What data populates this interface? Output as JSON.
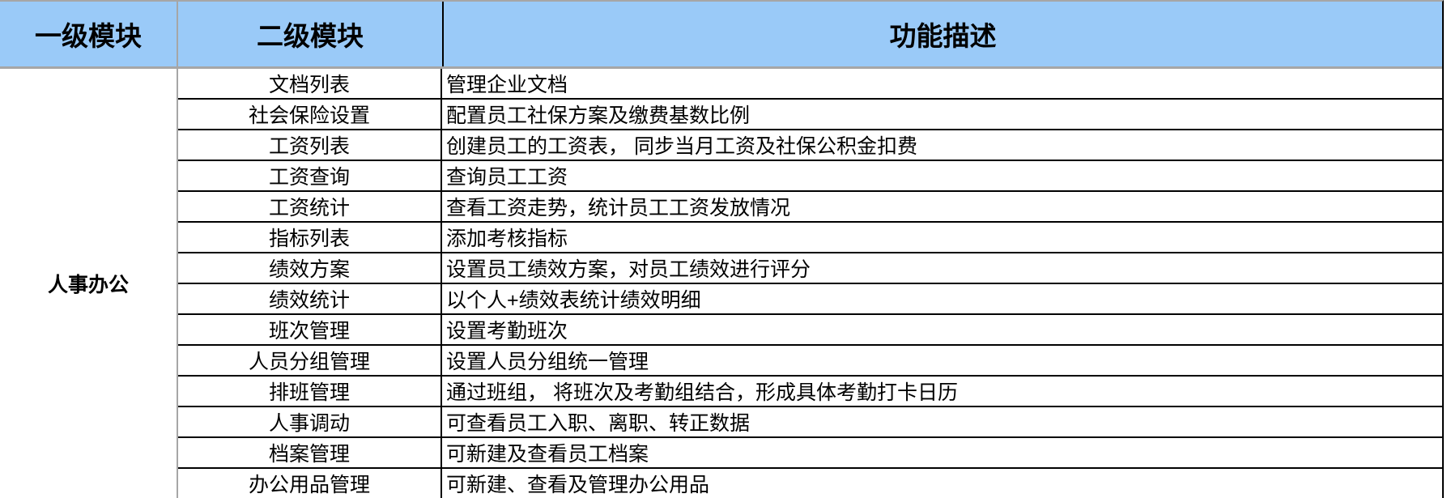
{
  "table": {
    "headers": {
      "level1": "一级模块",
      "level2": "二级模块",
      "description": "功能描述"
    },
    "group_label": "人事办公",
    "rows": [
      {
        "module": "文档列表",
        "description": "管理企业文档"
      },
      {
        "module": "社会保险设置",
        "description": "配置员工社保方案及缴费基数比例"
      },
      {
        "module": "工资列表",
        "description": "创建员工的工资表， 同步当月工资及社保公积金扣费"
      },
      {
        "module": "工资查询",
        "description": "查询员工工资"
      },
      {
        "module": "工资统计",
        "description": "查看工资走势，统计员工工资发放情况"
      },
      {
        "module": "指标列表",
        "description": "添加考核指标"
      },
      {
        "module": "绩效方案",
        "description": "设置员工绩效方案，对员工绩效进行评分"
      },
      {
        "module": "绩效统计",
        "description": "以个人+绩效表统计绩效明细"
      },
      {
        "module": "班次管理",
        "description": "设置考勤班次"
      },
      {
        "module": "人员分组管理",
        "description": "设置人员分组统一管理"
      },
      {
        "module": "排班管理",
        "description": "通过班组， 将班次及考勤组结合，形成具体考勤打卡日历"
      },
      {
        "module": "人事调动",
        "description": "可查看员工入职、离职、转正数据"
      },
      {
        "module": "档案管理",
        "description": "可新建及查看员工档案"
      },
      {
        "module": "办公用品管理",
        "description": "可新建、查看及管理办公用品"
      }
    ],
    "colors": {
      "header_bg": "#9acaf8",
      "grid_gray": "#a6a6a6",
      "border_black": "#000000"
    }
  }
}
